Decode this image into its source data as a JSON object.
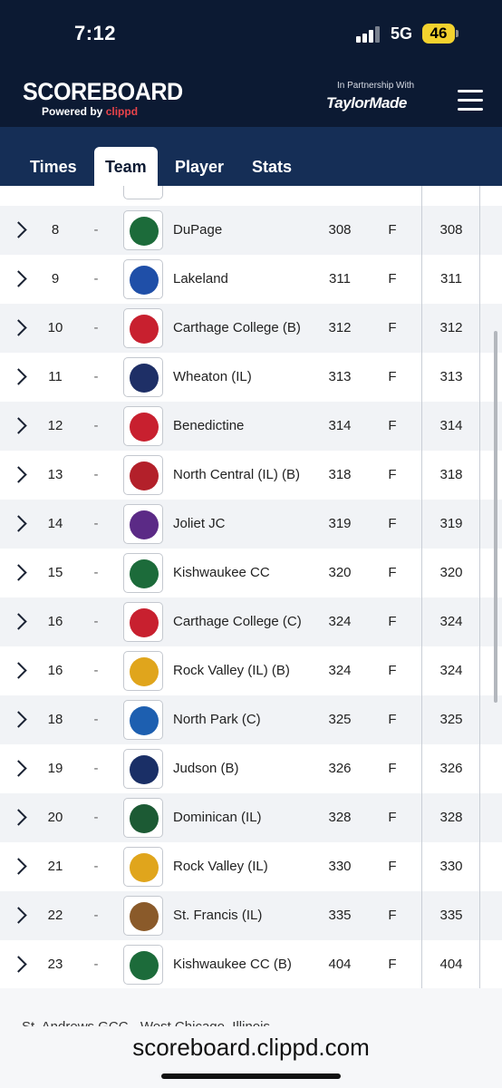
{
  "status_bar": {
    "time": "7:12",
    "network": "5G",
    "battery": "46"
  },
  "header": {
    "brand_title": "SCOREBOARD",
    "brand_sub_prefix": "Powered by ",
    "brand_sub_accent": "clippd",
    "partner_label": "In Partnership With",
    "partner_logo": "TaylorMade"
  },
  "tabs": [
    {
      "label": "Times",
      "active": false
    },
    {
      "label": "Team",
      "active": true
    },
    {
      "label": "Player",
      "active": false
    },
    {
      "label": "Stats",
      "active": false
    }
  ],
  "rows": [
    {
      "pos": "8",
      "move": "-",
      "team": "DuPage",
      "score": "308",
      "thru": "F",
      "total": "308",
      "logo_color": "#1c6b3a"
    },
    {
      "pos": "9",
      "move": "-",
      "team": "Lakeland",
      "score": "311",
      "thru": "F",
      "total": "311",
      "logo_color": "#1f4fa8"
    },
    {
      "pos": "10",
      "move": "-",
      "team": "Carthage College (B)",
      "score": "312",
      "thru": "F",
      "total": "312",
      "logo_color": "#c8202f"
    },
    {
      "pos": "11",
      "move": "-",
      "team": "Wheaton (IL)",
      "score": "313",
      "thru": "F",
      "total": "313",
      "logo_color": "#1e2f66"
    },
    {
      "pos": "12",
      "move": "-",
      "team": "Benedictine",
      "score": "314",
      "thru": "F",
      "total": "314",
      "logo_color": "#c8202f"
    },
    {
      "pos": "13",
      "move": "-",
      "team": "North Central (IL) (B)",
      "score": "318",
      "thru": "F",
      "total": "318",
      "logo_color": "#b3202a"
    },
    {
      "pos": "14",
      "move": "-",
      "team": "Joliet JC",
      "score": "319",
      "thru": "F",
      "total": "319",
      "logo_color": "#5b2a86"
    },
    {
      "pos": "15",
      "move": "-",
      "team": "Kishwaukee CC",
      "score": "320",
      "thru": "F",
      "total": "320",
      "logo_color": "#1c6b3a"
    },
    {
      "pos": "16",
      "move": "-",
      "team": "Carthage College (C)",
      "score": "324",
      "thru": "F",
      "total": "324",
      "logo_color": "#c8202f"
    },
    {
      "pos": "16",
      "move": "-",
      "team": "Rock Valley (IL) (B)",
      "score": "324",
      "thru": "F",
      "total": "324",
      "logo_color": "#e0a51c"
    },
    {
      "pos": "18",
      "move": "-",
      "team": "North Park (C)",
      "score": "325",
      "thru": "F",
      "total": "325",
      "logo_color": "#1d5fb0"
    },
    {
      "pos": "19",
      "move": "-",
      "team": "Judson (B)",
      "score": "326",
      "thru": "F",
      "total": "326",
      "logo_color": "#1a2f66"
    },
    {
      "pos": "20",
      "move": "-",
      "team": "Dominican (IL)",
      "score": "328",
      "thru": "F",
      "total": "328",
      "logo_color": "#1c5a34"
    },
    {
      "pos": "21",
      "move": "-",
      "team": "Rock Valley (IL)",
      "score": "330",
      "thru": "F",
      "total": "330",
      "logo_color": "#e0a51c"
    },
    {
      "pos": "22",
      "move": "-",
      "team": "St. Francis (IL)",
      "score": "335",
      "thru": "F",
      "total": "335",
      "logo_color": "#8a5a2a"
    },
    {
      "pos": "23",
      "move": "-",
      "team": "Kishwaukee CC (B)",
      "score": "404",
      "thru": "F",
      "total": "404",
      "logo_color": "#1c6b3a"
    }
  ],
  "footer": {
    "partial_text": "St. Andrews GCC - West Chicago, Illinois"
  },
  "browser": {
    "url": "scoreboard.clippd.com"
  }
}
